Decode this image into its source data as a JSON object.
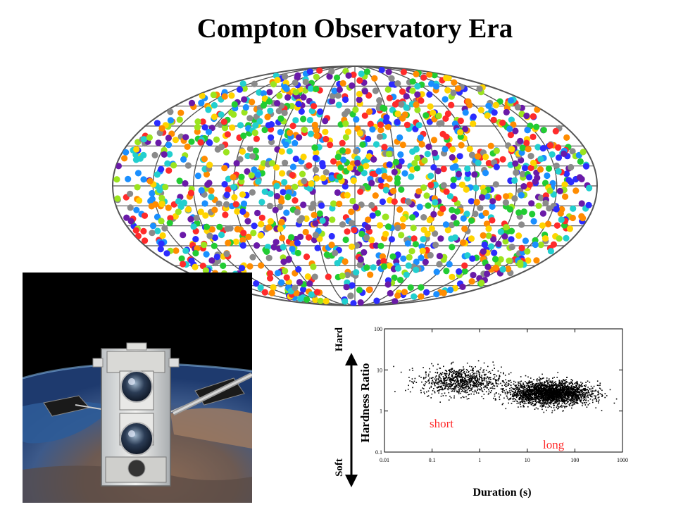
{
  "title": "Compton Observatory Era",
  "sky_map": {
    "colors": [
      "#ff2b2b",
      "#ff8c00",
      "#ffd400",
      "#9be41e",
      "#22cc33",
      "#22cfcf",
      "#1a8fff",
      "#2c2cff",
      "#6a1aa8",
      "#8a8a8a"
    ],
    "grid_color": "#555555"
  },
  "photo": {
    "description_icons": [
      "earth-icon",
      "satellite-icon"
    ]
  },
  "chart_data": {
    "type": "scatter",
    "xlabel": "Duration (s)",
    "ylabel": "Hardness Ratio",
    "x_scale": "log",
    "y_scale": "log",
    "xlim": [
      0.01,
      1000
    ],
    "ylim": [
      0.1,
      100
    ],
    "x_ticks": [
      "0.01",
      "0.1",
      "1",
      "10",
      "100",
      "1000"
    ],
    "y_ticks": [
      "0.1",
      "1",
      "10",
      "100"
    ],
    "annotations": {
      "short": "short",
      "long": "long",
      "hard": "Hard",
      "soft": "Soft"
    },
    "clusters": [
      {
        "name": "short",
        "center_duration": 0.4,
        "center_hardness": 5.5
      },
      {
        "name": "long",
        "center_duration": 30,
        "center_hardness": 2.8
      }
    ],
    "colors": {
      "points": "#000000",
      "annotation": "#ff2a2a"
    }
  }
}
